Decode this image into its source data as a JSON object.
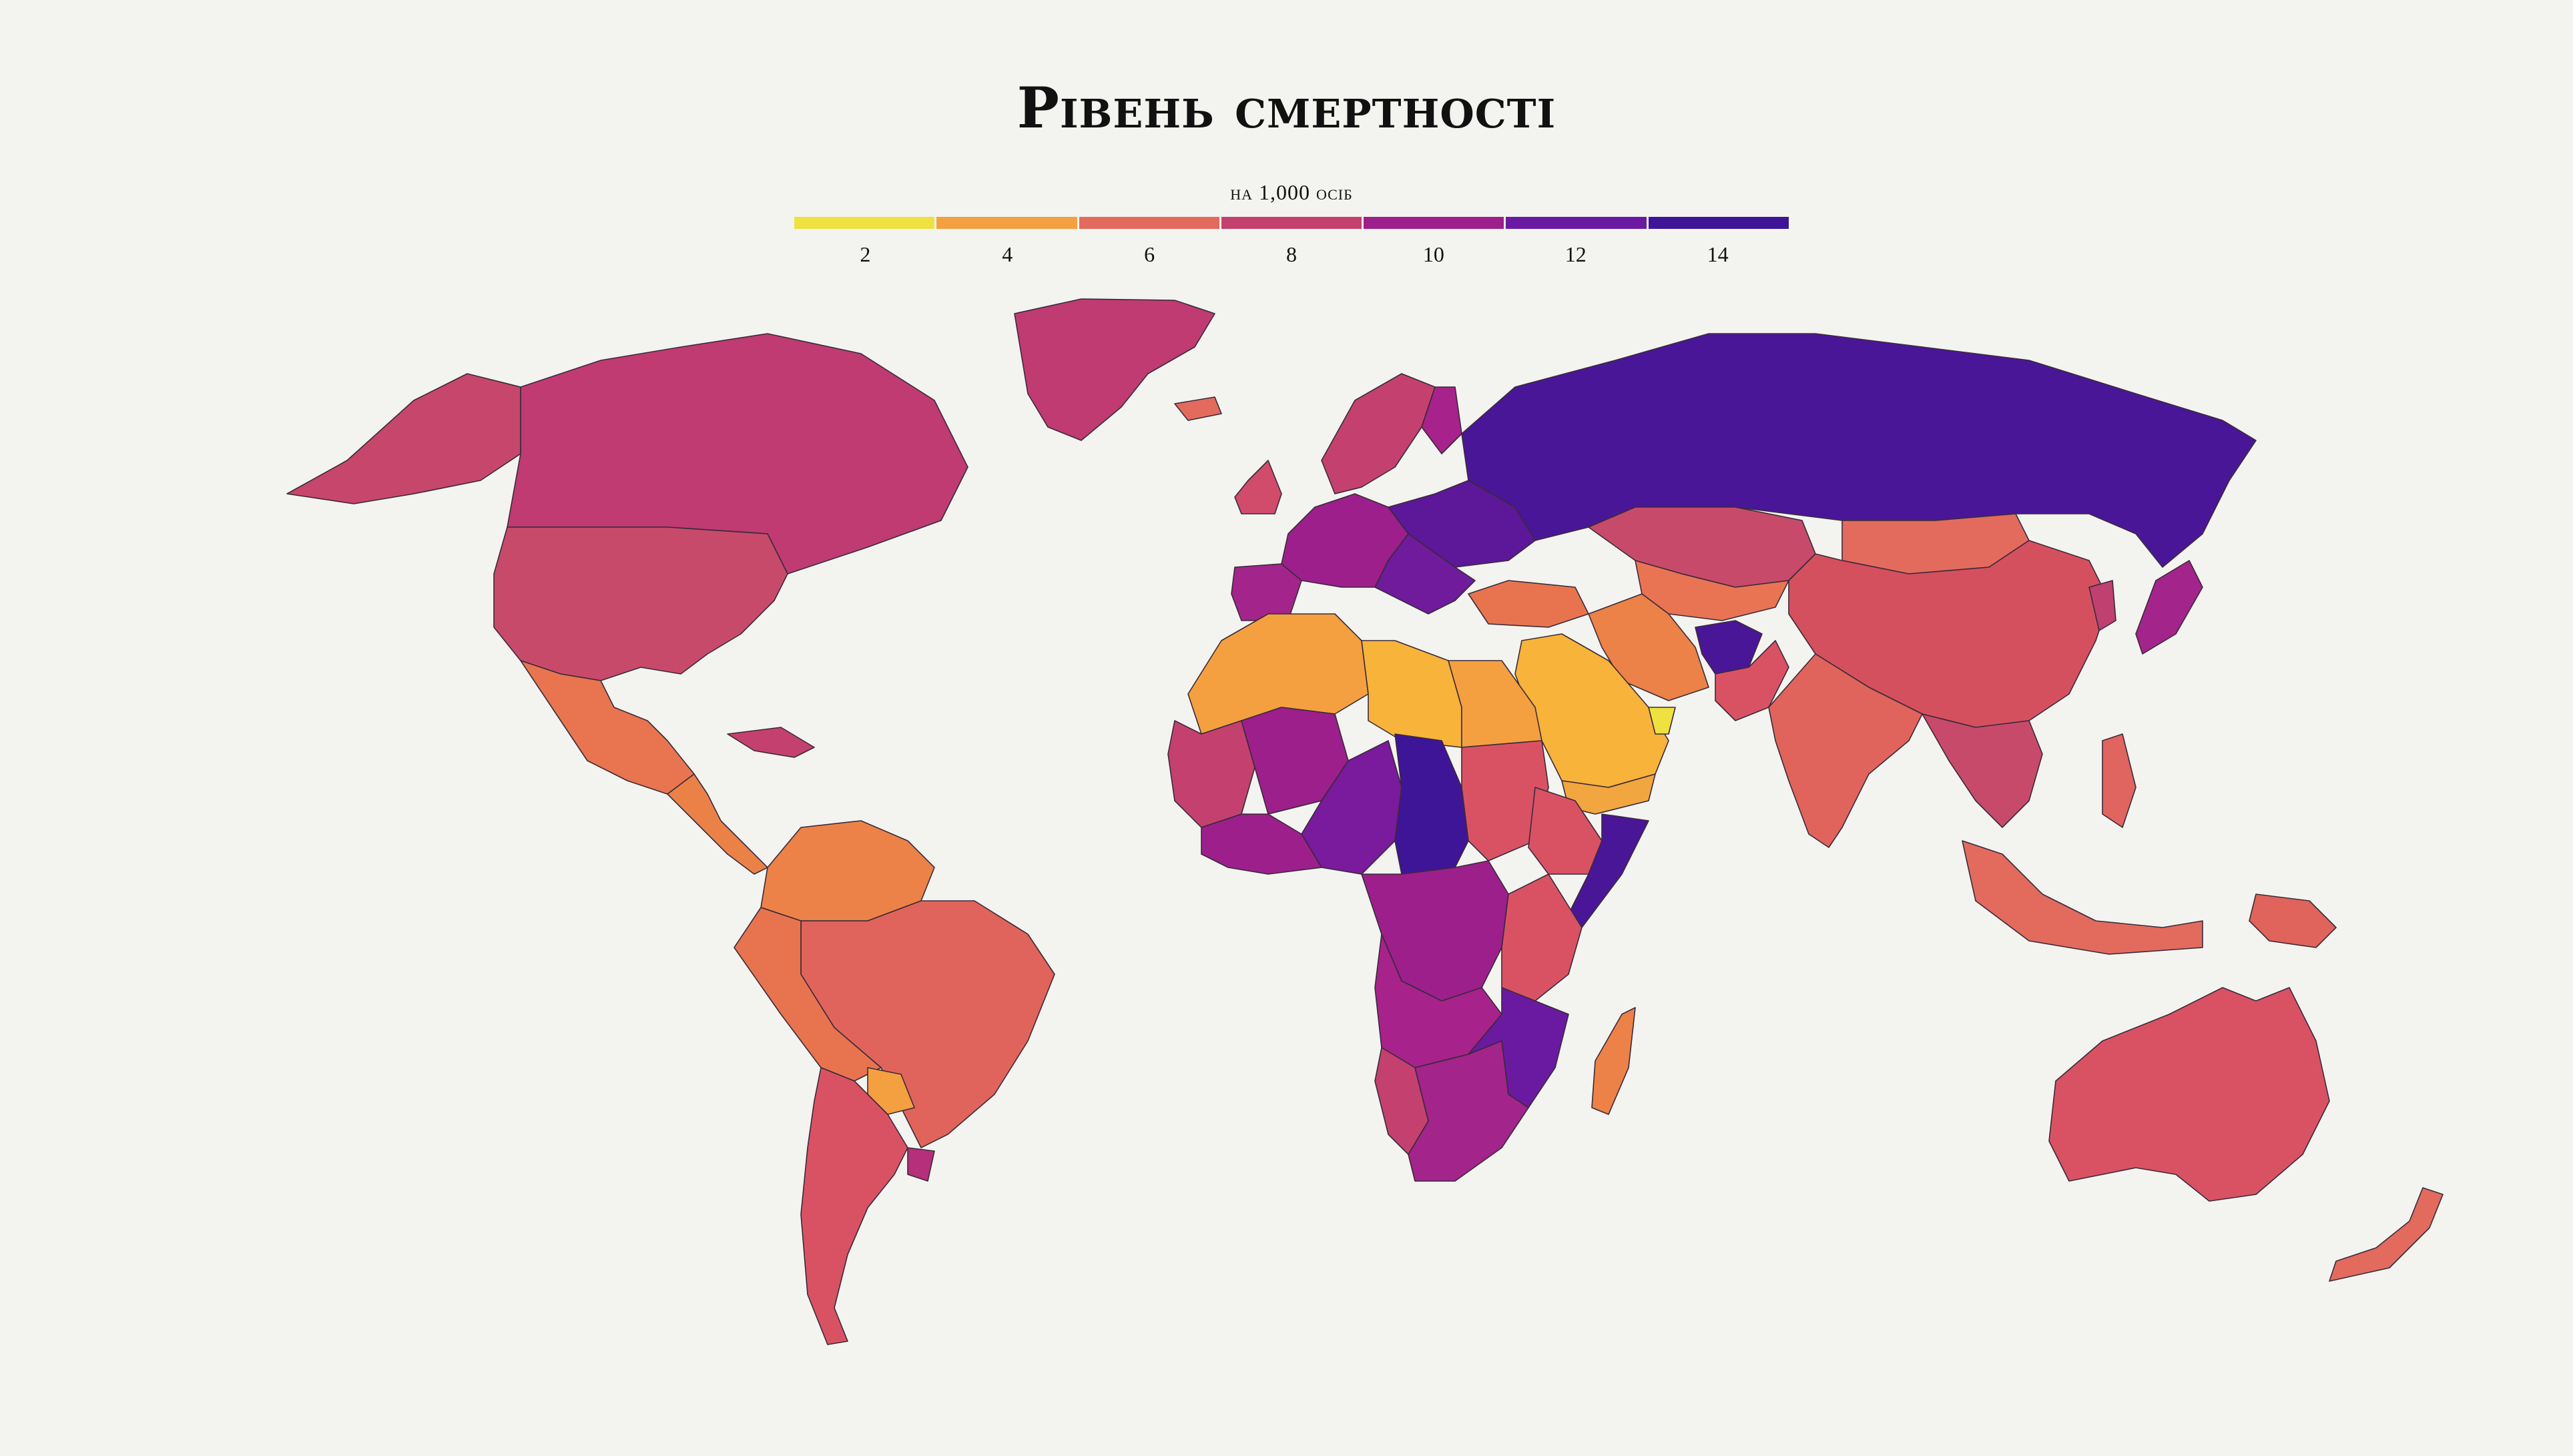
{
  "title": "Рівень смертності",
  "legend": {
    "subtitle": "на 1,000 осіб",
    "colors": [
      "#efe13f",
      "#f4a040",
      "#e26b5e",
      "#c4416f",
      "#9c1f8c",
      "#6a1aa0",
      "#3e1596"
    ],
    "ticks": [
      "2",
      "4",
      "6",
      "8",
      "10",
      "12",
      "14"
    ]
  },
  "regions": [
    {
      "id": "greenland",
      "color": "#bf3b72"
    },
    {
      "id": "canada",
      "color": "#bf3b72"
    },
    {
      "id": "alaska",
      "color": "#c7466c"
    },
    {
      "id": "usa",
      "color": "#c84a6a"
    },
    {
      "id": "mexico",
      "color": "#e8754f"
    },
    {
      "id": "central-america",
      "color": "#ea8248"
    },
    {
      "id": "caribbean",
      "color": "#c4416f"
    },
    {
      "id": "colombia-venezuela",
      "color": "#ec8247"
    },
    {
      "id": "brazil",
      "color": "#e0645b"
    },
    {
      "id": "peru-bolivia",
      "color": "#e8744f"
    },
    {
      "id": "paraguay",
      "color": "#f4a040"
    },
    {
      "id": "argentina-chile",
      "color": "#d95264"
    },
    {
      "id": "uruguay",
      "color": "#b52f7b"
    },
    {
      "id": "iceland",
      "color": "#e26b5e"
    },
    {
      "id": "scandinavia",
      "color": "#c4416f"
    },
    {
      "id": "finland",
      "color": "#a7228a"
    },
    {
      "id": "uk-ireland",
      "color": "#d04c6a"
    },
    {
      "id": "iberia",
      "color": "#a3248a"
    },
    {
      "id": "western-europe",
      "color": "#9c1f8c"
    },
    {
      "id": "eastern-europe",
      "color": "#5d1799"
    },
    {
      "id": "balkans",
      "color": "#6f1b9c"
    },
    {
      "id": "russia",
      "color": "#4a1698"
    },
    {
      "id": "kazakhstan",
      "color": "#c84a6a"
    },
    {
      "id": "central-asia",
      "color": "#e87454"
    },
    {
      "id": "turkey",
      "color": "#e8744f"
    },
    {
      "id": "iran",
      "color": "#ec8247"
    },
    {
      "id": "afghanistan",
      "color": "#4a1698"
    },
    {
      "id": "arabia",
      "color": "#f7b33a"
    },
    {
      "id": "uae",
      "color": "#efe13f"
    },
    {
      "id": "yemen",
      "color": "#f1a640"
    },
    {
      "id": "mongolia",
      "color": "#e26b5e"
    },
    {
      "id": "china",
      "color": "#d5505f"
    },
    {
      "id": "india",
      "color": "#e0645b"
    },
    {
      "id": "pakistan",
      "color": "#d95264"
    },
    {
      "id": "southeast-asia",
      "color": "#c84a6a"
    },
    {
      "id": "korea",
      "color": "#c04070"
    },
    {
      "id": "japan",
      "color": "#a3248a"
    },
    {
      "id": "indonesia",
      "color": "#e26b5e"
    },
    {
      "id": "philippines",
      "color": "#e06460"
    },
    {
      "id": "new-guinea",
      "color": "#e0645b"
    },
    {
      "id": "australia",
      "color": "#d95264"
    },
    {
      "id": "new-zealand",
      "color": "#e26b5e"
    },
    {
      "id": "north-africa",
      "color": "#f4a040"
    },
    {
      "id": "libya",
      "color": "#f7b33a"
    },
    {
      "id": "egypt",
      "color": "#f4a040"
    },
    {
      "id": "sahel-west",
      "color": "#c4416f"
    },
    {
      "id": "mali",
      "color": "#9c1f8c"
    },
    {
      "id": "niger-nigeria",
      "color": "#7a1a9c"
    },
    {
      "id": "chad-car",
      "color": "#3e1596"
    },
    {
      "id": "sudan",
      "color": "#d95264"
    },
    {
      "id": "ethiopia",
      "color": "#d95264"
    },
    {
      "id": "somalia",
      "color": "#4a1698"
    },
    {
      "id": "west-africa-coast",
      "color": "#9c1f8c"
    },
    {
      "id": "central-africa",
      "color": "#9c1f8c"
    },
    {
      "id": "east-africa",
      "color": "#d95264"
    },
    {
      "id": "angola-zambia",
      "color": "#a7228a"
    },
    {
      "id": "mozambique-malawi",
      "color": "#6a1aa0"
    },
    {
      "id": "namibia",
      "color": "#c4416f"
    },
    {
      "id": "southern-africa",
      "color": "#a3248a"
    },
    {
      "id": "madagascar",
      "color": "#ec8247"
    }
  ]
}
